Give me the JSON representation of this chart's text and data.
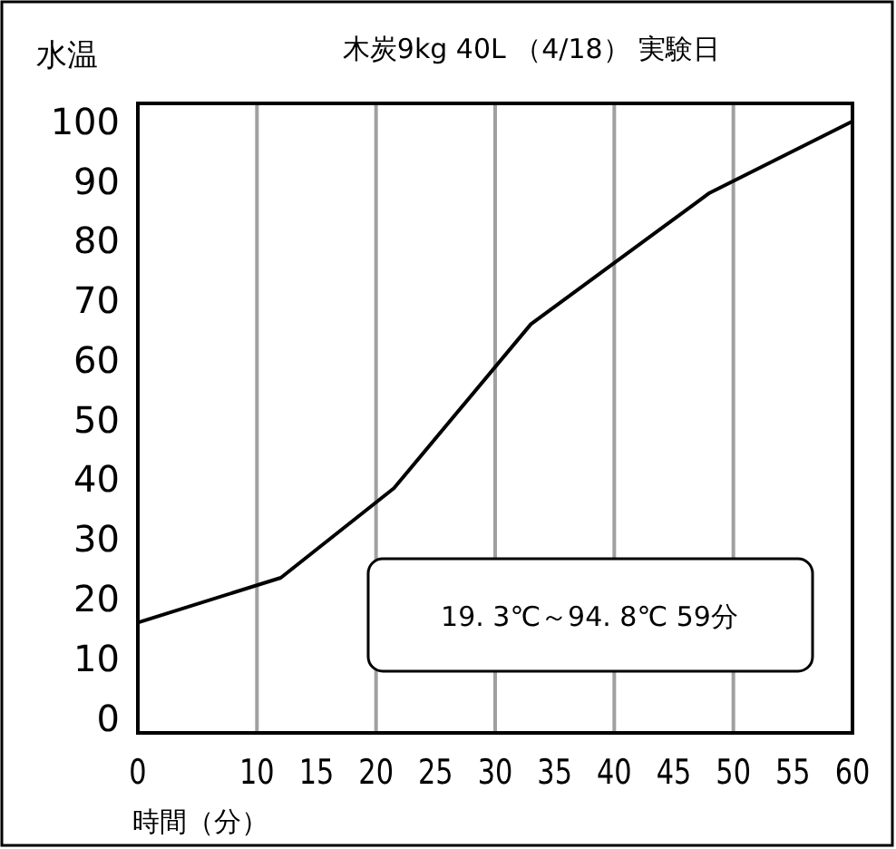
{
  "chart_data": {
    "type": "line",
    "title": "木炭9kg 40L （4/18） 実験日",
    "xlabel": "時間（分）",
    "ylabel": "水温",
    "annotations": [
      "19. 3℃～94. 8℃ 59分"
    ],
    "x": [
      0,
      12,
      21.5,
      33,
      48,
      60
    ],
    "series": [
      {
        "color": "#000000",
        "values": [
          16,
          23.5,
          38.5,
          66,
          88,
          100
        ]
      }
    ],
    "xlim": [
      0,
      60
    ],
    "ylim": [
      -2.5,
      103
    ],
    "xticks": [
      0,
      10,
      15,
      20,
      25,
      30,
      35,
      40,
      45,
      50,
      55,
      60
    ],
    "yticks": [
      0,
      10,
      20,
      30,
      40,
      50,
      60,
      70,
      80,
      90,
      100
    ],
    "ref_lines": [
      {
        "axis": "x",
        "value": 10,
        "color": "#a0a0a0"
      },
      {
        "axis": "x",
        "value": 20,
        "color": "#a0a0a0"
      },
      {
        "axis": "x",
        "value": 30,
        "color": "#a0a0a0"
      },
      {
        "axis": "x",
        "value": 40,
        "color": "#a0a0a0"
      },
      {
        "axis": "x",
        "value": 50,
        "color": "#a0a0a0"
      }
    ],
    "marker": "none",
    "line_style": "solid"
  }
}
